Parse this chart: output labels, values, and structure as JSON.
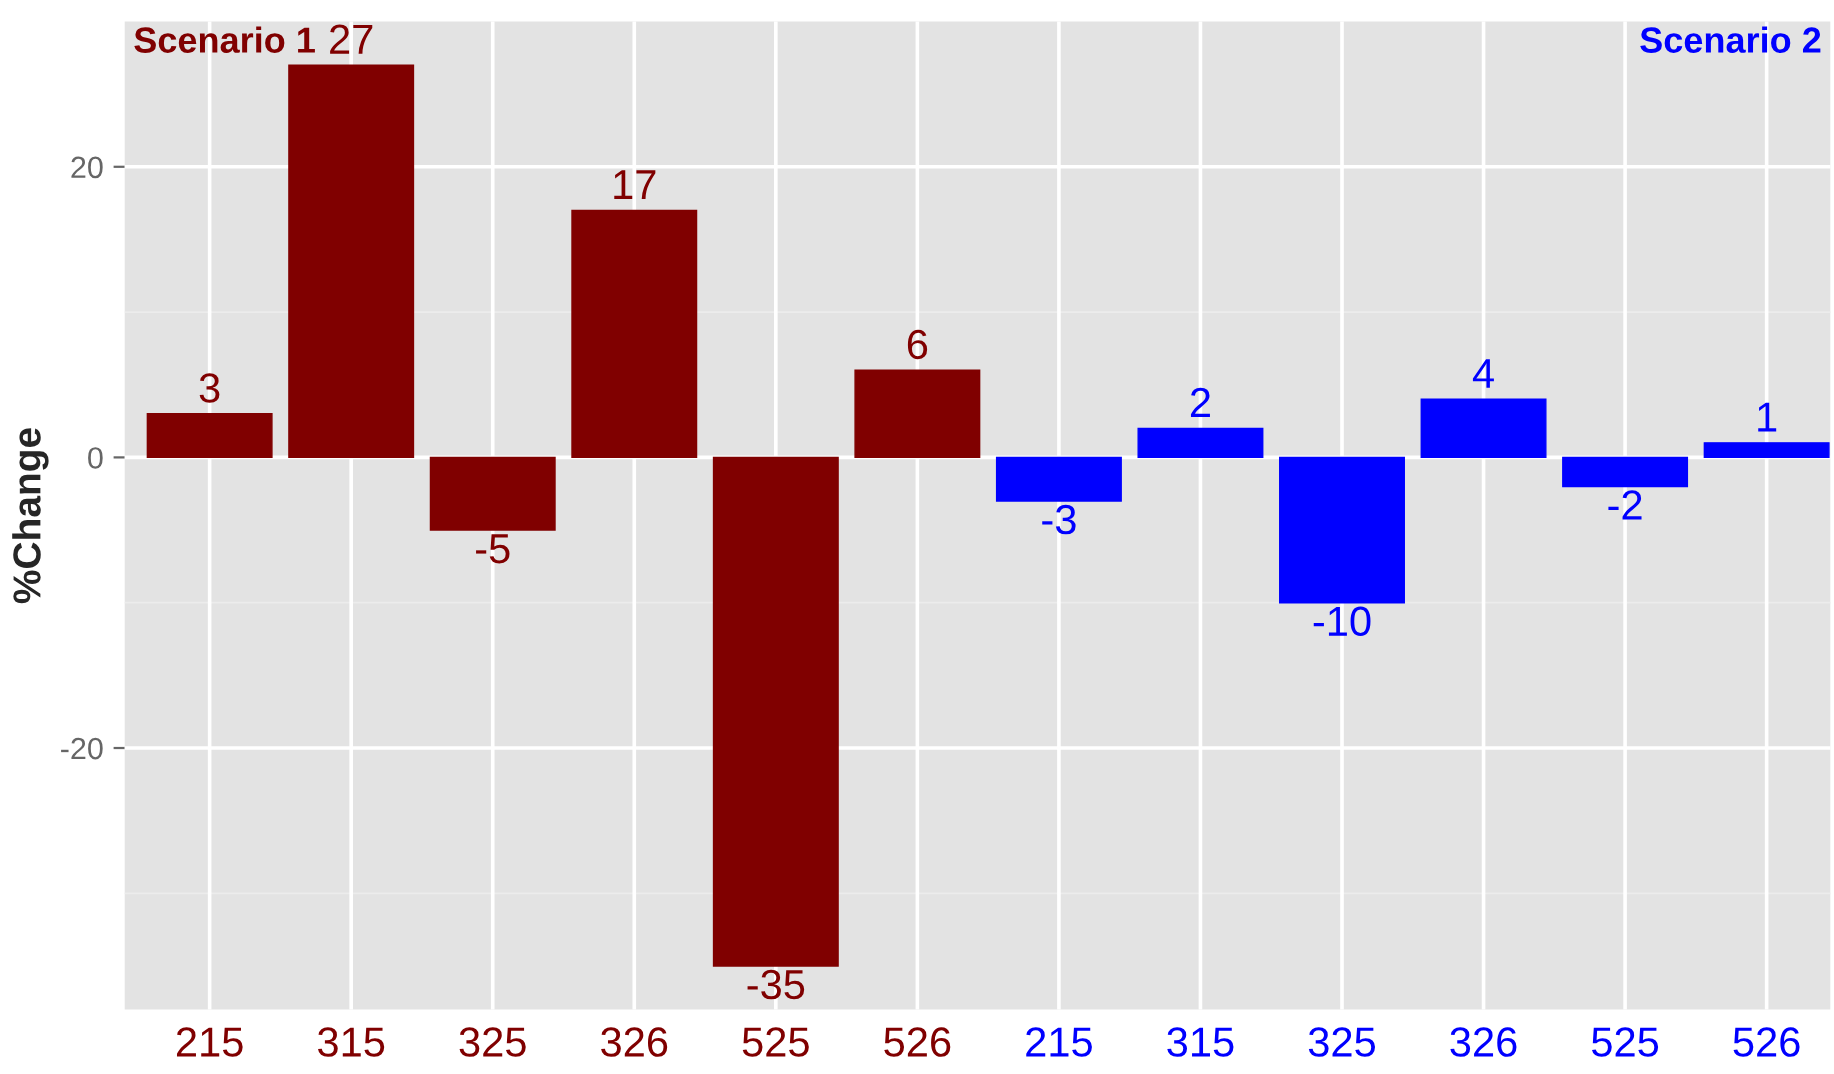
{
  "chart_data": {
    "type": "bar",
    "ylabel": "%Change",
    "categories": [
      "215",
      "315",
      "325",
      "326",
      "525",
      "526",
      "215",
      "315",
      "325",
      "326",
      "525",
      "526"
    ],
    "values": [
      3,
      27,
      -5,
      17,
      -35,
      6,
      -3,
      2,
      -10,
      4,
      -2,
      1
    ],
    "colors": [
      "#800000",
      "#800000",
      "#800000",
      "#800000",
      "#800000",
      "#800000",
      "#0000ff",
      "#0000ff",
      "#0000ff",
      "#0000ff",
      "#0000ff",
      "#0000ff"
    ],
    "ylim": [
      -38,
      30
    ],
    "yticks": [
      {
        "value": -20,
        "label": "-20"
      },
      0,
      20
    ],
    "data_labels": true,
    "grid": true,
    "annotations": [
      "Scenario 1",
      "Scenario 2"
    ]
  }
}
